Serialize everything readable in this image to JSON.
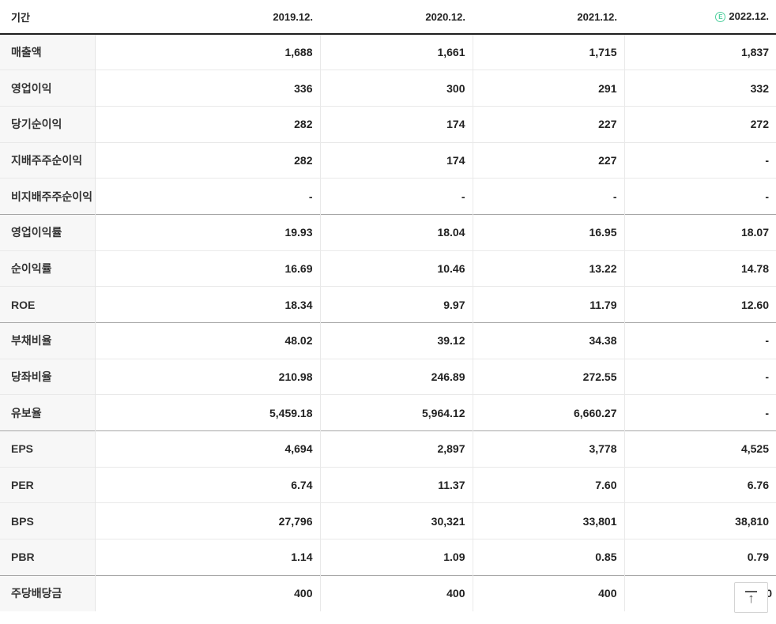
{
  "header": {
    "period_label": "기간",
    "years": [
      "2019.12.",
      "2020.12.",
      "2021.12.",
      "2022.12."
    ],
    "estimate": {
      "letter": "E",
      "applies_to": "2022.12.",
      "color": "#4ecf9d"
    }
  },
  "chart_data": {
    "type": "table",
    "columns": [
      "기간",
      "2019.12.",
      "2020.12.",
      "2021.12.",
      "(E) 2022.12."
    ],
    "rows": [
      {
        "label": "매출액",
        "values": [
          "1,688",
          "1,661",
          "1,715",
          "1,837"
        ],
        "section_start": false
      },
      {
        "label": "영업이익",
        "values": [
          "336",
          "300",
          "291",
          "332"
        ],
        "section_start": false
      },
      {
        "label": "당기순이익",
        "values": [
          "282",
          "174",
          "227",
          "272"
        ],
        "section_start": false
      },
      {
        "label": "지배주주순이익",
        "values": [
          "282",
          "174",
          "227",
          "-"
        ],
        "section_start": false
      },
      {
        "label": "비지배주주순이익",
        "values": [
          "-",
          "-",
          "-",
          "-"
        ],
        "section_start": false
      },
      {
        "label": "영업이익률",
        "values": [
          "19.93",
          "18.04",
          "16.95",
          "18.07"
        ],
        "section_start": true
      },
      {
        "label": "순이익률",
        "values": [
          "16.69",
          "10.46",
          "13.22",
          "14.78"
        ],
        "section_start": false
      },
      {
        "label": "ROE",
        "values": [
          "18.34",
          "9.97",
          "11.79",
          "12.60"
        ],
        "section_start": false
      },
      {
        "label": "부채비율",
        "values": [
          "48.02",
          "39.12",
          "34.38",
          "-"
        ],
        "section_start": true
      },
      {
        "label": "당좌비율",
        "values": [
          "210.98",
          "246.89",
          "272.55",
          "-"
        ],
        "section_start": false
      },
      {
        "label": "유보율",
        "values": [
          "5,459.18",
          "5,964.12",
          "6,660.27",
          "-"
        ],
        "section_start": false
      },
      {
        "label": "EPS",
        "values": [
          "4,694",
          "2,897",
          "3,778",
          "4,525"
        ],
        "section_start": true
      },
      {
        "label": "PER",
        "values": [
          "6.74",
          "11.37",
          "7.60",
          "6.76"
        ],
        "section_start": false
      },
      {
        "label": "BPS",
        "values": [
          "27,796",
          "30,321",
          "33,801",
          "38,810"
        ],
        "section_start": false
      },
      {
        "label": "PBR",
        "values": [
          "1.14",
          "1.09",
          "0.85",
          "0.79"
        ],
        "section_start": false
      },
      {
        "label": "주당배당금",
        "values": [
          "400",
          "400",
          "400",
          "400"
        ],
        "section_start": true
      }
    ]
  },
  "scroll_top_button": {
    "arrow": "↑"
  },
  "colors": {
    "row_border": "#e9e9e9",
    "section_border": "#a6a6a6",
    "header_border": "#1f1f1f",
    "label_bg": "#f7f7f7",
    "text": "#222222",
    "estimate_green": "#4ecf9d"
  }
}
